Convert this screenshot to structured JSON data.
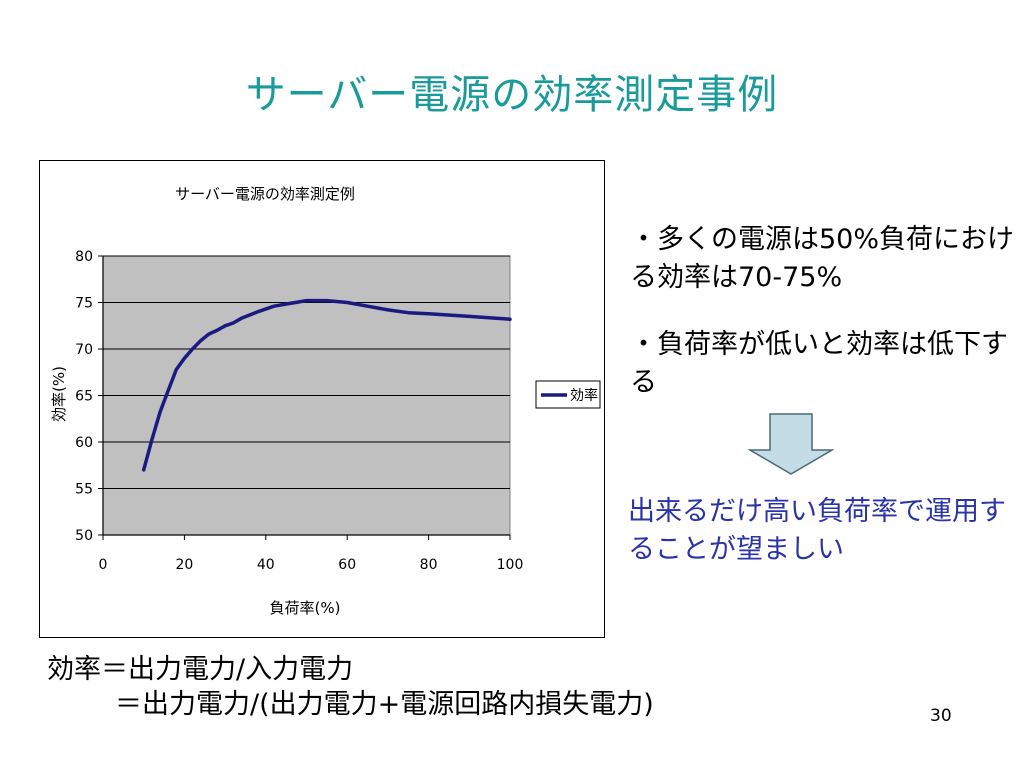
{
  "slide": {
    "title": "サーバー電源の効率測定事例",
    "bullets": [
      "・多くの電源は50%負荷における効率は70-75%",
      "・負荷率が低いと効率は低下する"
    ],
    "conclusion": "出来るだけ高い負荷率で運用することが望ましい",
    "formula_line_1": "効率＝出力電力/入力電力",
    "formula_line_2": "＝出力電力/(出力電力+電源回路内損失電力)",
    "page_number": "30"
  },
  "colors": {
    "title": "#1a9b9b",
    "conclusion": "#2b33a8",
    "series_line": "#1a1a80",
    "plot_background": "#c0c0c0",
    "arrow_fill": "#c3dce6"
  },
  "chart_data": {
    "type": "line",
    "title": "サーバー電源の効率測定例",
    "xlabel": "負荷率(%)",
    "ylabel": "効率(%)",
    "xlim": [
      0,
      100
    ],
    "ylim": [
      50,
      80
    ],
    "xticks": [
      0,
      20,
      40,
      60,
      80,
      100
    ],
    "yticks": [
      50,
      55,
      60,
      65,
      70,
      75,
      80
    ],
    "grid": true,
    "legend_position": "right",
    "series": [
      {
        "name": "効率",
        "x": [
          10,
          12,
          14,
          16,
          18,
          20,
          22,
          24,
          26,
          28,
          30,
          32,
          34,
          38,
          42,
          46,
          50,
          55,
          60,
          65,
          70,
          75,
          80,
          90,
          100
        ],
        "y": [
          57.0,
          60.2,
          63.2,
          65.5,
          67.8,
          69.0,
          70.0,
          70.9,
          71.6,
          72.0,
          72.5,
          72.8,
          73.3,
          74.0,
          74.6,
          74.9,
          75.2,
          75.2,
          75.0,
          74.6,
          74.2,
          73.9,
          73.8,
          73.5,
          73.2
        ]
      }
    ]
  }
}
